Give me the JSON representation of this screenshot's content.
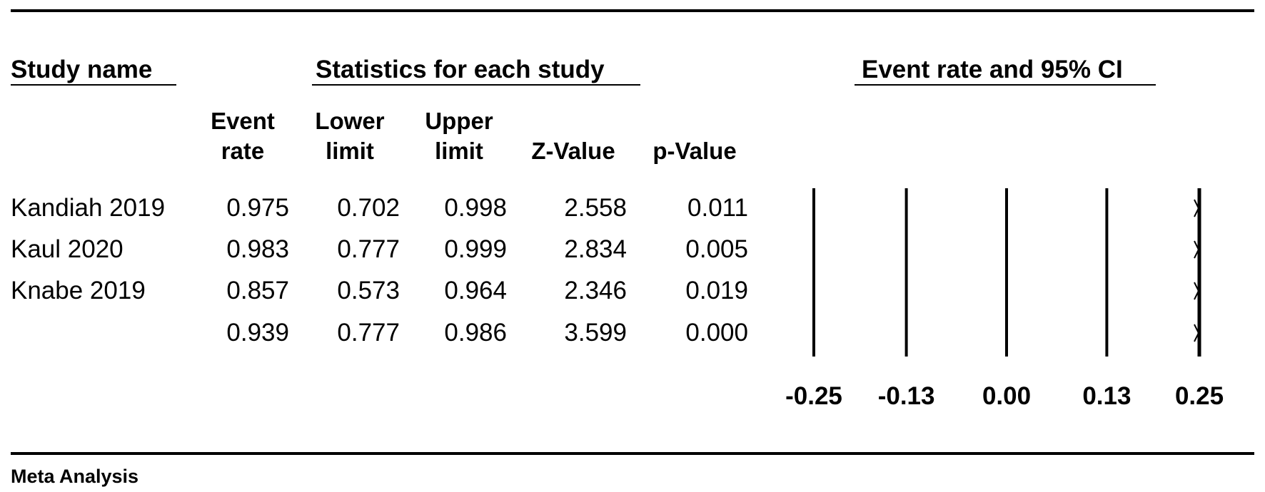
{
  "headers": {
    "study_name": "Study name",
    "statistics": "Statistics for each study",
    "event_rate_ci": "Event rate and 95% CI"
  },
  "columns": [
    {
      "line1": "Event",
      "line2": "rate"
    },
    {
      "line1": "Lower",
      "line2": "limit"
    },
    {
      "line1": "Upper",
      "line2": "limit"
    },
    {
      "line1": "",
      "line2": "Z-Value"
    },
    {
      "line1": "",
      "line2": "p-Value"
    }
  ],
  "rows": [
    {
      "name": "Kandiah 2019",
      "values": [
        "0.975",
        "0.702",
        "0.998",
        "2.558",
        "0.011"
      ]
    },
    {
      "name": "Kaul 2020",
      "values": [
        "0.983",
        "0.777",
        "0.999",
        "2.834",
        "0.005"
      ]
    },
    {
      "name": "Knabe 2019",
      "values": [
        "0.857",
        "0.573",
        "0.964",
        "2.346",
        "0.019"
      ]
    },
    {
      "name": "",
      "values": [
        "0.939",
        "0.777",
        "0.986",
        "3.599",
        "0.000"
      ]
    }
  ],
  "footer": "Meta Analysis",
  "chart_data": {
    "type": "forest",
    "x_ticks": [
      -0.25,
      -0.13,
      0.0,
      0.13,
      0.25
    ],
    "x_tick_labels": [
      "-0.25",
      "-0.13",
      "0.00",
      "0.13",
      "0.25"
    ],
    "xlim": [
      -0.25,
      0.25
    ],
    "grid": true,
    "points": [
      0.975,
      0.983,
      0.857,
      0.939
    ]
  }
}
